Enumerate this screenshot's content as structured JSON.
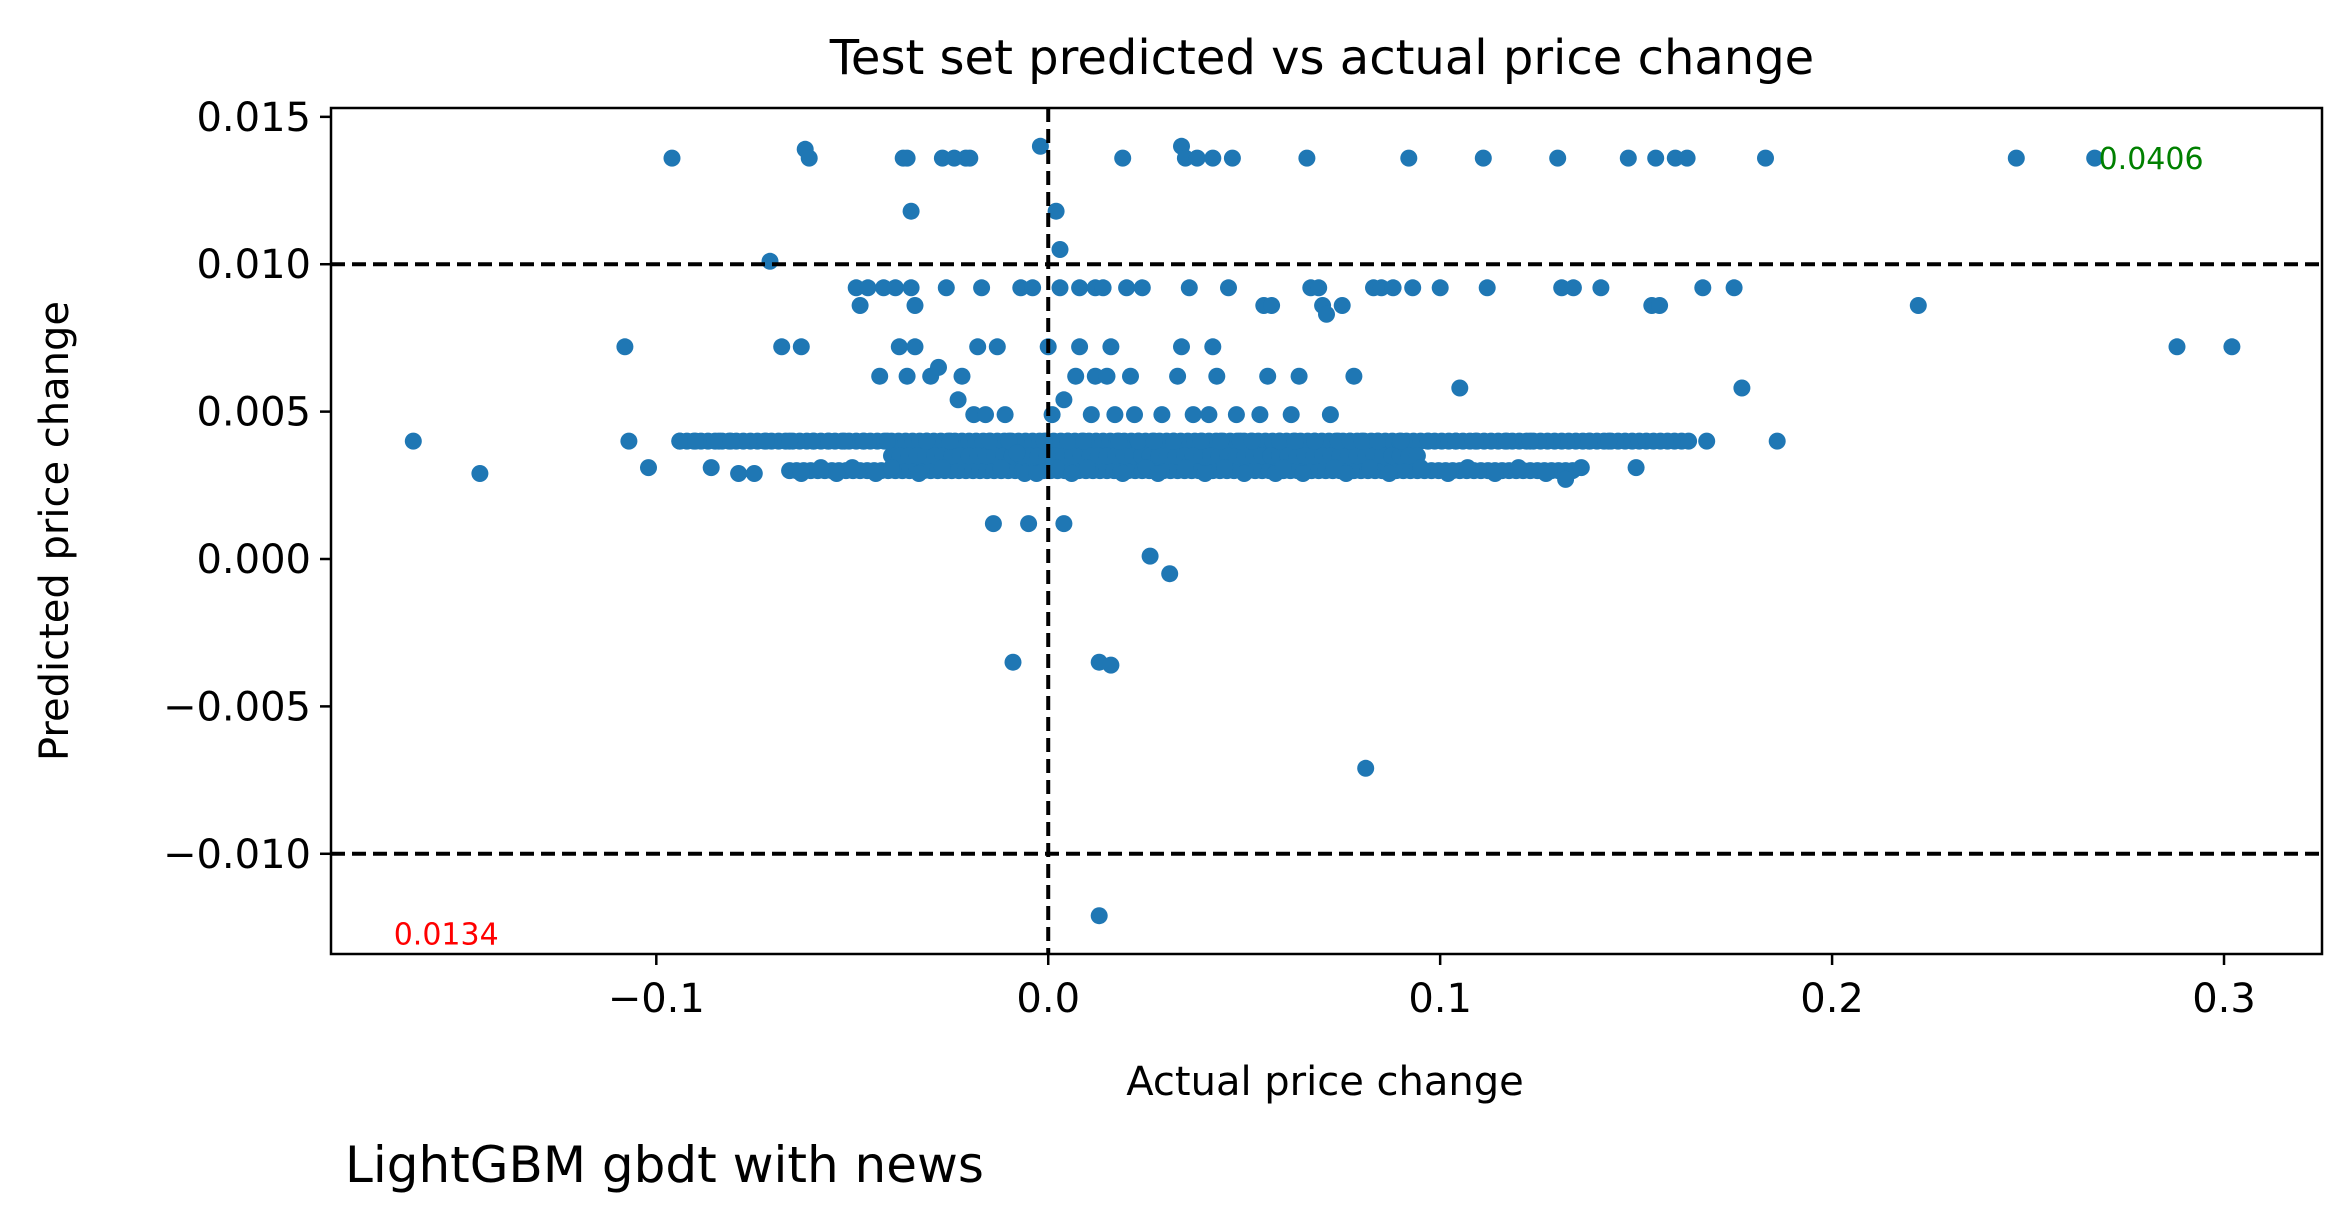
{
  "chart_data": {
    "type": "scatter",
    "title": "Test set predicted vs actual price change",
    "xlabel": "Actual price change",
    "ylabel": "Predicted price change",
    "xlim": [
      -0.183,
      0.325
    ],
    "ylim": [
      -0.0134,
      0.0153
    ],
    "x_ticks": [
      {
        "value": -0.1,
        "label": "−0.1"
      },
      {
        "value": 0.0,
        "label": "0.0"
      },
      {
        "value": 0.1,
        "label": "0.1"
      },
      {
        "value": 0.2,
        "label": "0.2"
      },
      {
        "value": 0.3,
        "label": "0.3"
      }
    ],
    "y_ticks": [
      {
        "value": 0.015,
        "label": "0.015"
      },
      {
        "value": 0.01,
        "label": "0.010"
      },
      {
        "value": 0.005,
        "label": "0.005"
      },
      {
        "value": 0.0,
        "label": "0.000"
      },
      {
        "value": -0.005,
        "label": "−0.005"
      },
      {
        "value": -0.01,
        "label": "−0.010"
      }
    ],
    "grid": false,
    "point_color": "#1f77b4",
    "reference_lines": [
      {
        "orientation": "horizontal",
        "value": 0.01,
        "style": "dashed",
        "color": "#000000"
      },
      {
        "orientation": "horizontal",
        "value": -0.01,
        "style": "dashed",
        "color": "#000000"
      },
      {
        "orientation": "vertical",
        "value": 0.0,
        "style": "dashed",
        "color": "#000000"
      }
    ],
    "annotations": [
      {
        "text": "0.0406",
        "x": 0.268,
        "y": 0.0136,
        "color": "#008000"
      },
      {
        "text": "0.0134",
        "x": -0.167,
        "y": -0.0127,
        "color": "#ff0000"
      }
    ],
    "series": [
      {
        "points": [
          [
            -0.162,
            0.004
          ],
          [
            -0.145,
            0.0029
          ],
          [
            -0.108,
            0.0072
          ],
          [
            -0.107,
            0.004
          ],
          [
            -0.102,
            0.0031
          ],
          [
            -0.096,
            0.0136
          ],
          [
            -0.094,
            0.004
          ],
          [
            -0.09,
            0.004
          ],
          [
            -0.086,
            0.0031
          ],
          [
            -0.084,
            0.004
          ],
          [
            -0.081,
            0.004
          ],
          [
            -0.079,
            0.0029
          ],
          [
            -0.075,
            0.0029
          ],
          [
            -0.072,
            0.004
          ],
          [
            -0.071,
            0.0101
          ],
          [
            -0.068,
            0.0072
          ],
          [
            -0.066,
            0.004
          ],
          [
            -0.063,
            0.0072
          ],
          [
            -0.063,
            0.0029
          ],
          [
            -0.062,
            0.0139
          ],
          [
            -0.061,
            0.0136
          ],
          [
            -0.06,
            0.004
          ],
          [
            -0.058,
            0.0031
          ],
          [
            -0.056,
            0.004
          ],
          [
            -0.054,
            0.0029
          ],
          [
            -0.052,
            0.004
          ],
          [
            -0.05,
            0.0031
          ],
          [
            -0.049,
            0.0092
          ],
          [
            -0.048,
            0.0086
          ],
          [
            -0.047,
            0.004
          ],
          [
            -0.046,
            0.0092
          ],
          [
            -0.044,
            0.0029
          ],
          [
            -0.043,
            0.0062
          ],
          [
            -0.042,
            0.0092
          ],
          [
            -0.041,
            0.004
          ],
          [
            -0.04,
            0.0031
          ],
          [
            -0.039,
            0.0092
          ],
          [
            -0.038,
            0.0072
          ],
          [
            -0.037,
            0.0136
          ],
          [
            -0.036,
            0.0062
          ],
          [
            -0.036,
            0.0136
          ],
          [
            -0.035,
            0.0118
          ],
          [
            -0.035,
            0.0092
          ],
          [
            -0.034,
            0.0086
          ],
          [
            -0.034,
            0.0072
          ],
          [
            -0.033,
            0.0029
          ],
          [
            -0.031,
            0.004
          ],
          [
            -0.03,
            0.0062
          ],
          [
            -0.028,
            0.0065
          ],
          [
            -0.027,
            0.0136
          ],
          [
            -0.027,
            0.0031
          ],
          [
            -0.026,
            0.0092
          ],
          [
            -0.025,
            0.004
          ],
          [
            -0.024,
            0.0136
          ],
          [
            -0.023,
            0.0054
          ],
          [
            -0.022,
            0.0062
          ],
          [
            -0.021,
            0.0136
          ],
          [
            -0.02,
            0.0136
          ],
          [
            -0.019,
            0.0049
          ],
          [
            -0.018,
            0.0072
          ],
          [
            -0.017,
            0.0092
          ],
          [
            -0.016,
            0.0049
          ],
          [
            -0.015,
            0.004
          ],
          [
            -0.014,
            0.0012
          ],
          [
            -0.013,
            0.0072
          ],
          [
            -0.012,
            0.0031
          ],
          [
            -0.011,
            0.0049
          ],
          [
            -0.01,
            0.004
          ],
          [
            -0.009,
            -0.0035
          ],
          [
            -0.008,
            0.0036
          ],
          [
            -0.007,
            0.0092
          ],
          [
            -0.006,
            0.0029
          ],
          [
            -0.005,
            0.0012
          ],
          [
            -0.004,
            0.0092
          ],
          [
            -0.003,
            0.0029
          ],
          [
            -0.002,
            0.014
          ],
          [
            -0.001,
            0.004
          ],
          [
            0.0,
            0.0072
          ],
          [
            0.001,
            0.0049
          ],
          [
            0.002,
            0.0031
          ],
          [
            0.002,
            0.0118
          ],
          [
            0.003,
            0.0105
          ],
          [
            0.003,
            0.0092
          ],
          [
            0.004,
            0.0054
          ],
          [
            0.004,
            0.0012
          ],
          [
            0.005,
            0.004
          ],
          [
            0.006,
            0.0029
          ],
          [
            0.007,
            0.0062
          ],
          [
            0.008,
            0.0092
          ],
          [
            0.008,
            0.0072
          ],
          [
            0.009,
            0.004
          ],
          [
            0.01,
            0.0031
          ],
          [
            0.011,
            0.0049
          ],
          [
            0.012,
            0.0092
          ],
          [
            0.012,
            0.0062
          ],
          [
            0.013,
            -0.0035
          ],
          [
            0.013,
            -0.0121
          ],
          [
            0.014,
            0.0092
          ],
          [
            0.015,
            0.0062
          ],
          [
            0.016,
            -0.0036
          ],
          [
            0.016,
            0.0072
          ],
          [
            0.017,
            0.0049
          ],
          [
            0.018,
            0.004
          ],
          [
            0.019,
            0.0136
          ],
          [
            0.019,
            0.0029
          ],
          [
            0.02,
            0.0092
          ],
          [
            0.021,
            0.0062
          ],
          [
            0.022,
            0.0049
          ],
          [
            0.023,
            0.004
          ],
          [
            0.024,
            0.0092
          ],
          [
            0.025,
            0.0031
          ],
          [
            0.026,
            0.0001
          ],
          [
            0.027,
            0.004
          ],
          [
            0.028,
            0.0029
          ],
          [
            0.029,
            0.0049
          ],
          [
            0.031,
            -0.0005
          ],
          [
            0.032,
            0.004
          ],
          [
            0.033,
            0.0062
          ],
          [
            0.034,
            0.014
          ],
          [
            0.034,
            0.0072
          ],
          [
            0.035,
            0.0136
          ],
          [
            0.035,
            0.0031
          ],
          [
            0.036,
            0.0092
          ],
          [
            0.037,
            0.0049
          ],
          [
            0.038,
            0.0136
          ],
          [
            0.039,
            0.004
          ],
          [
            0.04,
            0.0029
          ],
          [
            0.041,
            0.0049
          ],
          [
            0.042,
            0.0136
          ],
          [
            0.042,
            0.0072
          ],
          [
            0.043,
            0.0062
          ],
          [
            0.044,
            0.004
          ],
          [
            0.045,
            0.0031
          ],
          [
            0.046,
            0.0092
          ],
          [
            0.047,
            0.0136
          ],
          [
            0.048,
            0.0049
          ],
          [
            0.049,
            0.004
          ],
          [
            0.05,
            0.0029
          ],
          [
            0.052,
            0.004
          ],
          [
            0.054,
            0.0049
          ],
          [
            0.055,
            0.0086
          ],
          [
            0.056,
            0.0062
          ],
          [
            0.057,
            0.0086
          ],
          [
            0.058,
            0.0029
          ],
          [
            0.059,
            0.004
          ],
          [
            0.06,
            0.0031
          ],
          [
            0.062,
            0.0049
          ],
          [
            0.063,
            0.004
          ],
          [
            0.064,
            0.0062
          ],
          [
            0.065,
            0.0029
          ],
          [
            0.066,
            0.0136
          ],
          [
            0.067,
            0.0092
          ],
          [
            0.068,
            0.004
          ],
          [
            0.069,
            0.0092
          ],
          [
            0.07,
            0.0086
          ],
          [
            0.071,
            0.0083
          ],
          [
            0.072,
            0.0049
          ],
          [
            0.073,
            0.0031
          ],
          [
            0.074,
            0.004
          ],
          [
            0.075,
            0.0086
          ],
          [
            0.076,
            0.0029
          ],
          [
            0.077,
            0.004
          ],
          [
            0.078,
            0.0062
          ],
          [
            0.08,
            0.004
          ],
          [
            0.081,
            -0.0071
          ],
          [
            0.082,
            0.0031
          ],
          [
            0.083,
            0.0092
          ],
          [
            0.084,
            0.004
          ],
          [
            0.085,
            0.0092
          ],
          [
            0.087,
            0.0029
          ],
          [
            0.088,
            0.0092
          ],
          [
            0.09,
            0.004
          ],
          [
            0.092,
            0.0136
          ],
          [
            0.093,
            0.0092
          ],
          [
            0.095,
            0.0031
          ],
          [
            0.097,
            0.004
          ],
          [
            0.1,
            0.0092
          ],
          [
            0.102,
            0.0029
          ],
          [
            0.104,
            0.004
          ],
          [
            0.105,
            0.0058
          ],
          [
            0.107,
            0.0031
          ],
          [
            0.109,
            0.004
          ],
          [
            0.111,
            0.0136
          ],
          [
            0.112,
            0.0092
          ],
          [
            0.114,
            0.0029
          ],
          [
            0.117,
            0.004
          ],
          [
            0.12,
            0.0031
          ],
          [
            0.123,
            0.004
          ],
          [
            0.127,
            0.0029
          ],
          [
            0.13,
            0.0136
          ],
          [
            0.131,
            0.0092
          ],
          [
            0.132,
            0.0027
          ],
          [
            0.134,
            0.0092
          ],
          [
            0.136,
            0.0031
          ],
          [
            0.138,
            0.004
          ],
          [
            0.141,
            0.0092
          ],
          [
            0.143,
            0.004
          ],
          [
            0.148,
            0.0136
          ],
          [
            0.15,
            0.0031
          ],
          [
            0.154,
            0.0086
          ],
          [
            0.155,
            0.0136
          ],
          [
            0.156,
            0.0086
          ],
          [
            0.16,
            0.0136
          ],
          [
            0.163,
            0.0136
          ],
          [
            0.167,
            0.0092
          ],
          [
            0.168,
            0.004
          ],
          [
            0.175,
            0.0092
          ],
          [
            0.177,
            0.0058
          ],
          [
            0.183,
            0.0136
          ],
          [
            0.186,
            0.004
          ],
          [
            0.222,
            0.0086
          ],
          [
            0.247,
            0.0136
          ],
          [
            0.267,
            0.0136
          ],
          [
            0.288,
            0.0072
          ],
          [
            0.302,
            0.0072
          ]
        ],
        "bands": [
          {
            "x_start": -0.094,
            "x_end": 0.165,
            "y": 0.004,
            "step": 0.0018
          },
          {
            "x_start": -0.066,
            "x_end": 0.135,
            "y": 0.003,
            "step": 0.0018
          },
          {
            "x_start": -0.04,
            "x_end": 0.095,
            "y": 0.0035,
            "step": 0.0022
          }
        ]
      }
    ]
  },
  "caption": "LightGBM gbdt with news"
}
